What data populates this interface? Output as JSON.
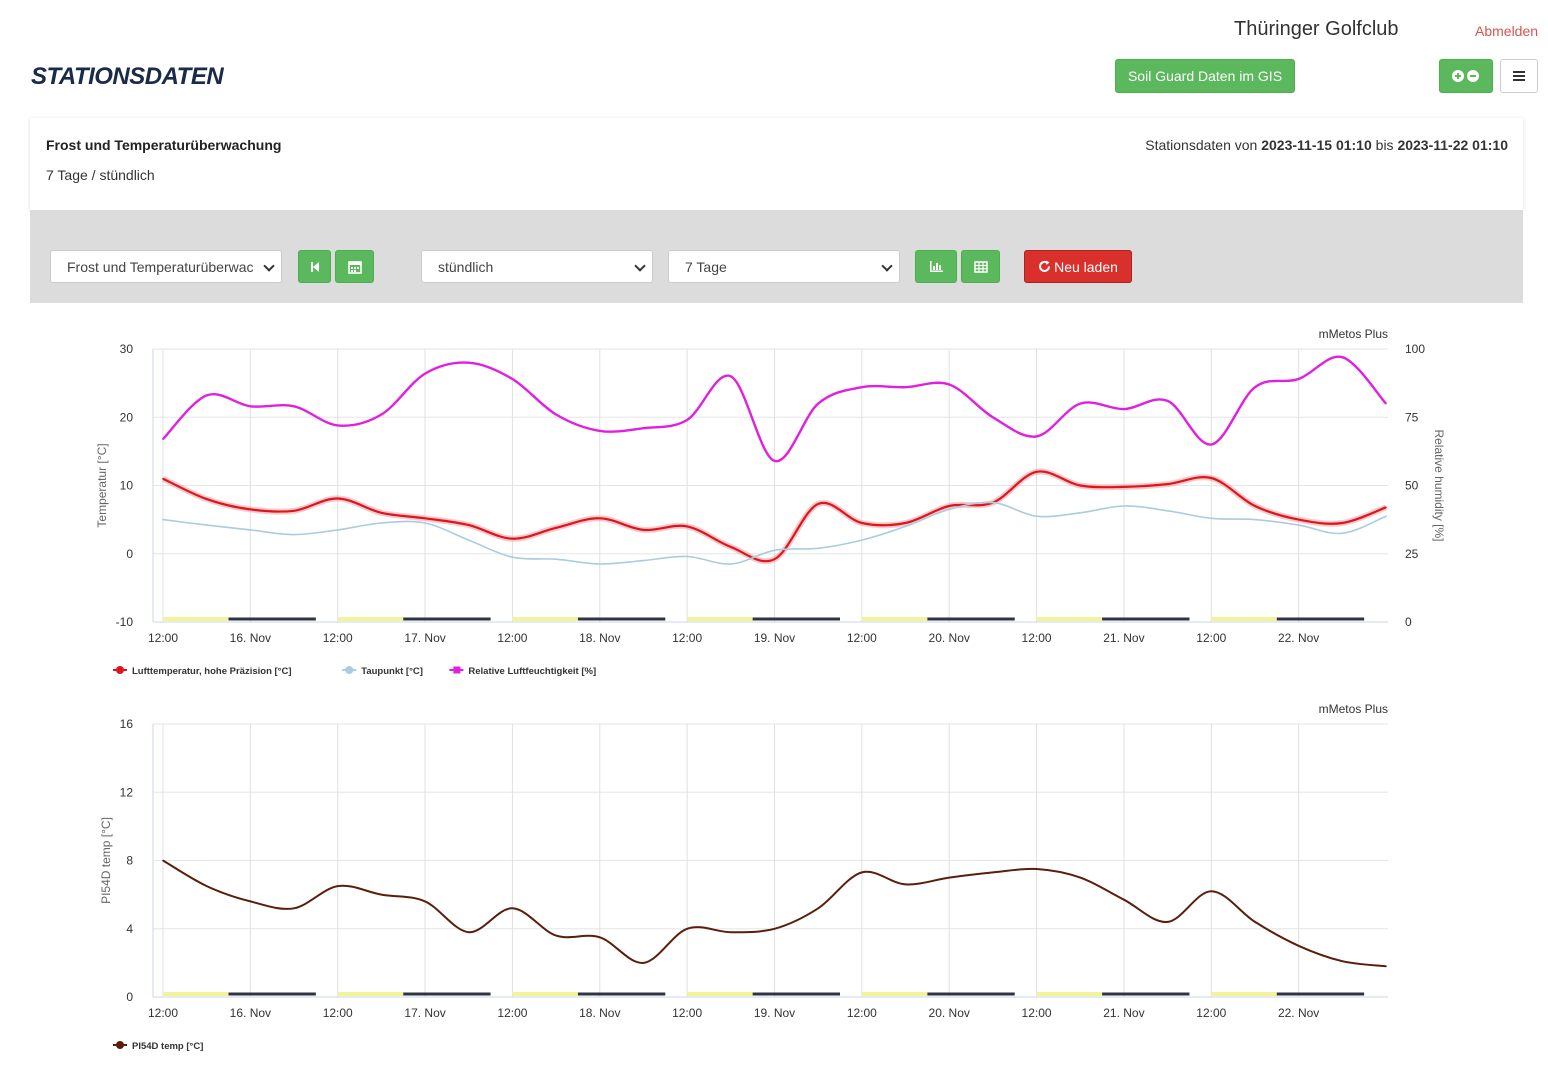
{
  "header": {
    "club_name": "Thüringer Golfclub",
    "logout_label": "Abmelden",
    "page_title": "STATIONSDATEN",
    "gis_button_label": "Soil Guard Daten im GIS"
  },
  "panel": {
    "title": "Frost und Temperaturüberwachung",
    "subtitle": "7 Tage / stündlich",
    "range_prefix": "Stationsdaten von",
    "range_from": "2023-11-15 01:10",
    "range_mid": "bis",
    "range_to": "2023-11-22 01:10"
  },
  "toolbar": {
    "view_select": "Frost und Temperaturüberwac",
    "interval_select": "stündlich",
    "period_select": "7 Tage",
    "reload_label": "Neu laden"
  },
  "icons": {
    "first": "skip-back-icon",
    "calendar": "calendar-icon",
    "chart": "bar-chart-icon",
    "table": "table-icon",
    "refresh": "refresh-icon",
    "zoom": "plus-minus-icon",
    "menu": "hamburger-icon"
  },
  "colors": {
    "green": "#5cb85c",
    "red": "#d9302c",
    "air_temp": "#e0141e",
    "dew_point": "#a8cce0",
    "humidity": "#e020e0",
    "soil_temp": "#5a1e0a"
  },
  "chart_data": [
    {
      "type": "line",
      "credit": "mMetos Plus",
      "x_ticks": [
        "12:00",
        "16. Nov",
        "12:00",
        "17. Nov",
        "12:00",
        "18. Nov",
        "12:00",
        "19. Nov",
        "12:00",
        "20. Nov",
        "12:00",
        "21. Nov",
        "12:00",
        "22. Nov"
      ],
      "ylabel": "Temperatur [°C]",
      "ylim": [
        -10,
        30
      ],
      "y_ticks": [
        "30",
        "20",
        "10",
        "0",
        "-10"
      ],
      "ylabel_right": "Relative humidity [%]",
      "ylim_right": [
        0,
        100
      ],
      "y_ticks_right": [
        "100",
        "75",
        "50",
        "25",
        "0"
      ],
      "x_hours": [
        0,
        6,
        12,
        18,
        24,
        30,
        36,
        42,
        48,
        54,
        60,
        66,
        72,
        78,
        84,
        90,
        96,
        102,
        108,
        114,
        120,
        126,
        132,
        138,
        144,
        150,
        156,
        162,
        168
      ],
      "series": [
        {
          "name": "Lufttemperatur, hohe Präzision [°C]",
          "axis": "left",
          "values": [
            11,
            8,
            6.5,
            6.3,
            8.1,
            6,
            5.2,
            4.2,
            2.2,
            3.8,
            5.2,
            3.5,
            4,
            1,
            -0.8,
            7.3,
            4.5,
            4.5,
            7,
            7.5,
            12,
            10,
            9.8,
            10.2,
            11.1,
            7,
            5,
            4.5,
            6.8
          ]
        },
        {
          "name": "Taupunkt [°C]",
          "axis": "left",
          "values": [
            5,
            4.2,
            3.5,
            2.8,
            3.5,
            4.5,
            4.5,
            2,
            -0.5,
            -0.8,
            -1.5,
            -1,
            -0.4,
            -1.5,
            0.5,
            0.8,
            2,
            4,
            6.5,
            7.5,
            5.5,
            6,
            7,
            6.3,
            5.2,
            5,
            4.2,
            3,
            5.5
          ]
        },
        {
          "name": "Relative Luftfeuchtigkeit [%]",
          "axis": "right",
          "values": [
            67,
            83,
            79,
            79,
            72,
            76,
            91,
            95,
            89,
            76,
            70,
            71,
            74,
            90,
            59,
            80,
            86,
            86,
            87,
            75,
            68,
            80,
            78,
            81,
            65,
            86,
            89,
            97,
            80
          ]
        }
      ],
      "legend": "bottom-left",
      "grid": true
    },
    {
      "type": "line",
      "credit": "mMetos Plus",
      "x_ticks": [
        "12:00",
        "16. Nov",
        "12:00",
        "17. Nov",
        "12:00",
        "18. Nov",
        "12:00",
        "19. Nov",
        "12:00",
        "20. Nov",
        "12:00",
        "21. Nov",
        "12:00",
        "22. Nov"
      ],
      "ylabel": "PI54D temp [°C]",
      "ylim": [
        0,
        16
      ],
      "y_ticks": [
        "16",
        "12",
        "8",
        "4",
        "0"
      ],
      "x_hours": [
        0,
        6,
        12,
        18,
        24,
        30,
        36,
        42,
        48,
        54,
        60,
        66,
        72,
        78,
        84,
        90,
        96,
        102,
        108,
        114,
        120,
        126,
        132,
        138,
        144,
        150,
        156,
        162,
        168
      ],
      "series": [
        {
          "name": "PI54D temp [°C]",
          "values": [
            8,
            6.5,
            5.6,
            5.2,
            6.5,
            6,
            5.6,
            3.8,
            5.2,
            3.6,
            3.5,
            2,
            4,
            3.8,
            4,
            5.2,
            7.3,
            6.6,
            7,
            7.3,
            7.5,
            7,
            5.7,
            4.4,
            6.2,
            4.4,
            3,
            2.1,
            1.8
          ]
        }
      ],
      "legend": "bottom-left",
      "grid": true
    }
  ]
}
